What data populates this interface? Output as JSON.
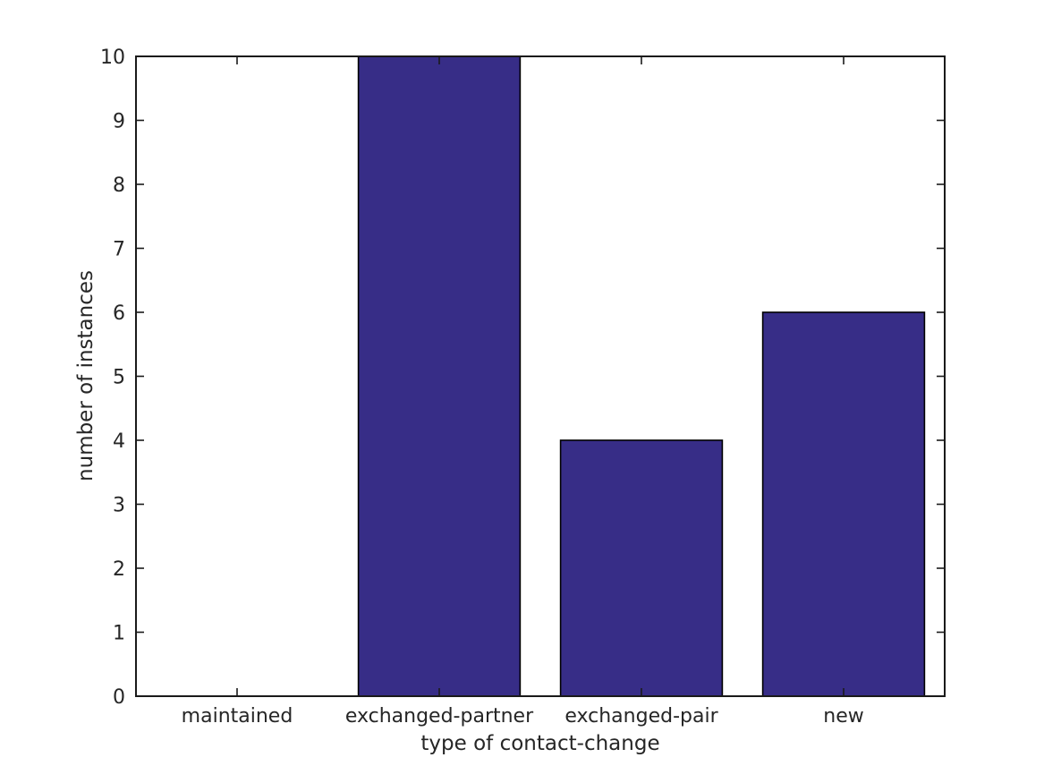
{
  "chart_data": {
    "type": "bar",
    "categories": [
      "maintained",
      "exchanged-partner",
      "exchanged-pair",
      "new"
    ],
    "values": [
      0,
      10,
      4,
      6
    ],
    "xlabel": "type of contact-change",
    "ylabel": "number of instances",
    "ylim": [
      0,
      10
    ],
    "yticks": [
      0,
      1,
      2,
      3,
      4,
      5,
      6,
      7,
      8,
      9,
      10
    ],
    "bar_width_fraction": 0.8,
    "grid": false,
    "legend": "none",
    "colors": {
      "bar_fill": "#372d87",
      "bar_edge": "#000000",
      "axis": "#1a1a1a",
      "text": "#262626",
      "background": "#ffffff"
    }
  }
}
